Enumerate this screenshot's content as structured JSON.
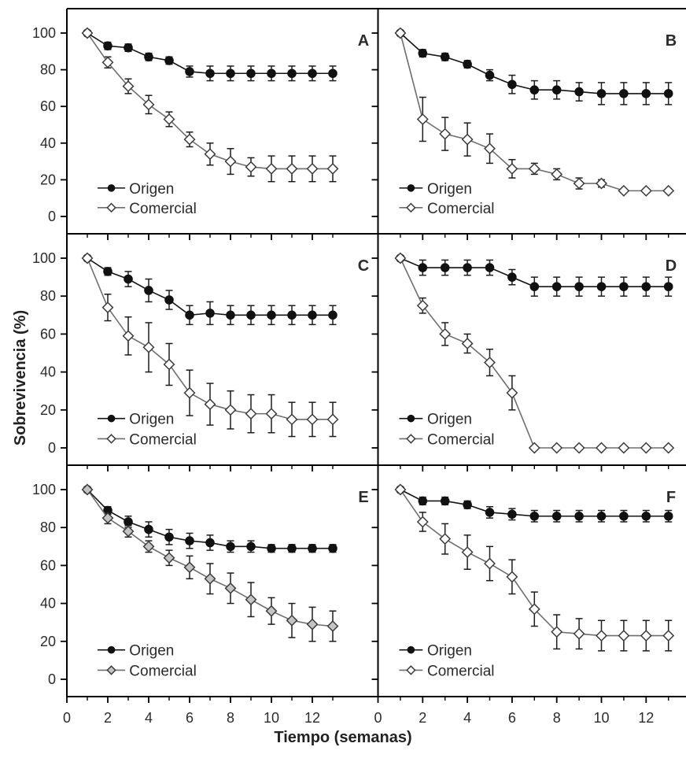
{
  "chart_meta": {
    "type": "line",
    "xlabel": "Tiempo (semanas)",
    "ylabel": "Sobrevivencia (%)",
    "x_ticks_major": [
      0,
      2,
      4,
      6,
      8,
      10,
      12
    ],
    "x_ticks_minor": [
      1,
      3,
      5,
      7,
      9,
      11,
      13
    ],
    "y_ticks": [
      100,
      80,
      60,
      40,
      20,
      0
    ],
    "xlim": [
      0,
      13.5
    ],
    "ylim": [
      0,
      100
    ],
    "weeks": [
      1,
      2,
      3,
      4,
      5,
      6,
      7,
      8,
      9,
      10,
      11,
      12,
      13
    ],
    "grid": false,
    "legend_position": "lower-left-inside",
    "colors": {
      "origen_line": "#141414",
      "origen_marker": "#111111",
      "comercial_line": "#6e6e6e",
      "comercial_marker_stroke": "#3c3c3c",
      "comercial_fill_open": "#ffffff",
      "comercial_fill_gray": "#c4c4c4",
      "error_bar": "#1c1c1c",
      "axis": "#000000",
      "text": "#2b2b2b"
    }
  },
  "chart_data": [
    {
      "label": "A",
      "series": [
        {
          "name": "Origen",
          "marker": "filled-circle",
          "marker_fill": "#111111",
          "values": [
            100,
            93,
            92,
            87,
            85,
            79,
            78,
            78,
            78,
            78,
            78,
            78,
            78
          ],
          "errors": [
            0,
            2,
            2,
            2,
            2,
            3,
            4,
            4,
            4,
            4,
            4,
            4,
            4
          ]
        },
        {
          "name": "Comercial",
          "marker": "open-diamond",
          "marker_fill": "#ffffff",
          "values": [
            100,
            84,
            71,
            61,
            53,
            42,
            34,
            30,
            27,
            26,
            26,
            26,
            26
          ],
          "errors": [
            0,
            3,
            4,
            5,
            4,
            4,
            6,
            7,
            5,
            7,
            7,
            7,
            7
          ]
        }
      ]
    },
    {
      "label": "B",
      "series": [
        {
          "name": "Origen",
          "marker": "filled-circle",
          "marker_fill": "#111111",
          "values": [
            100,
            89,
            87,
            83,
            77,
            72,
            69,
            69,
            68,
            67,
            67,
            67,
            67
          ],
          "errors": [
            0,
            2,
            2,
            2,
            3,
            5,
            5,
            5,
            5,
            6,
            6,
            6,
            6
          ]
        },
        {
          "name": "Comercial",
          "marker": "open-diamond",
          "marker_fill": "#ffffff",
          "values": [
            100,
            53,
            45,
            42,
            37,
            26,
            26,
            23,
            18,
            18,
            14,
            14,
            14
          ],
          "errors": [
            0,
            12,
            9,
            9,
            8,
            5,
            3,
            3,
            3,
            2,
            1,
            1,
            1
          ]
        }
      ]
    },
    {
      "label": "C",
      "series": [
        {
          "name": "Origen",
          "marker": "filled-circle",
          "marker_fill": "#111111",
          "values": [
            100,
            93,
            89,
            83,
            78,
            70,
            71,
            70,
            70,
            70,
            70,
            70,
            70
          ],
          "errors": [
            0,
            2,
            4,
            6,
            5,
            5,
            6,
            5,
            5,
            5,
            5,
            5,
            5
          ]
        },
        {
          "name": "Comercial",
          "marker": "open-diamond",
          "marker_fill": "#ffffff",
          "values": [
            100,
            74,
            59,
            53,
            44,
            29,
            23,
            20,
            18,
            18,
            15,
            15,
            15
          ],
          "errors": [
            0,
            7,
            10,
            13,
            11,
            12,
            11,
            10,
            10,
            10,
            9,
            9,
            9
          ]
        }
      ]
    },
    {
      "label": "D",
      "series": [
        {
          "name": "Origen",
          "marker": "filled-circle",
          "marker_fill": "#111111",
          "values": [
            100,
            95,
            95,
            95,
            95,
            90,
            85,
            85,
            85,
            85,
            85,
            85,
            85
          ],
          "errors": [
            0,
            4,
            4,
            4,
            4,
            4,
            5,
            5,
            5,
            5,
            5,
            5,
            5
          ]
        },
        {
          "name": "Comercial",
          "marker": "open-diamond",
          "marker_fill": "#ffffff",
          "values": [
            100,
            75,
            60,
            55,
            45,
            29,
            0,
            0,
            0,
            0,
            0,
            0,
            0
          ],
          "errors": [
            0,
            4,
            6,
            5,
            7,
            9,
            0,
            0,
            0,
            0,
            0,
            0,
            0
          ]
        }
      ]
    },
    {
      "label": "E",
      "series": [
        {
          "name": "Origen",
          "marker": "filled-circle",
          "marker_fill": "#111111",
          "values": [
            100,
            89,
            83,
            79,
            75,
            73,
            72,
            70,
            70,
            69,
            69,
            69,
            69
          ],
          "errors": [
            0,
            2,
            3,
            4,
            4,
            4,
            4,
            3,
            3,
            2,
            2,
            2,
            2
          ]
        },
        {
          "name": "Comercial",
          "marker": "gray-diamond",
          "marker_fill": "#c4c4c4",
          "values": [
            100,
            85,
            78,
            70,
            64,
            59,
            53,
            48,
            42,
            36,
            31,
            29,
            28
          ],
          "errors": [
            0,
            3,
            3,
            3,
            4,
            6,
            8,
            8,
            9,
            7,
            9,
            9,
            8
          ]
        }
      ]
    },
    {
      "label": "F",
      "series": [
        {
          "name": "Origen",
          "marker": "filled-circle",
          "marker_fill": "#111111",
          "values": [
            100,
            94,
            94,
            92,
            88,
            87,
            86,
            86,
            86,
            86,
            86,
            86,
            86
          ],
          "errors": [
            0,
            2,
            2,
            2,
            3,
            3,
            3,
            3,
            3,
            3,
            3,
            3,
            3
          ]
        },
        {
          "name": "Comercial",
          "marker": "open-diamond",
          "marker_fill": "#ffffff",
          "values": [
            100,
            83,
            74,
            67,
            61,
            54,
            37,
            25,
            24,
            23,
            23,
            23,
            23
          ],
          "errors": [
            0,
            5,
            8,
            9,
            9,
            9,
            9,
            9,
            8,
            8,
            8,
            8,
            8
          ]
        }
      ]
    }
  ]
}
